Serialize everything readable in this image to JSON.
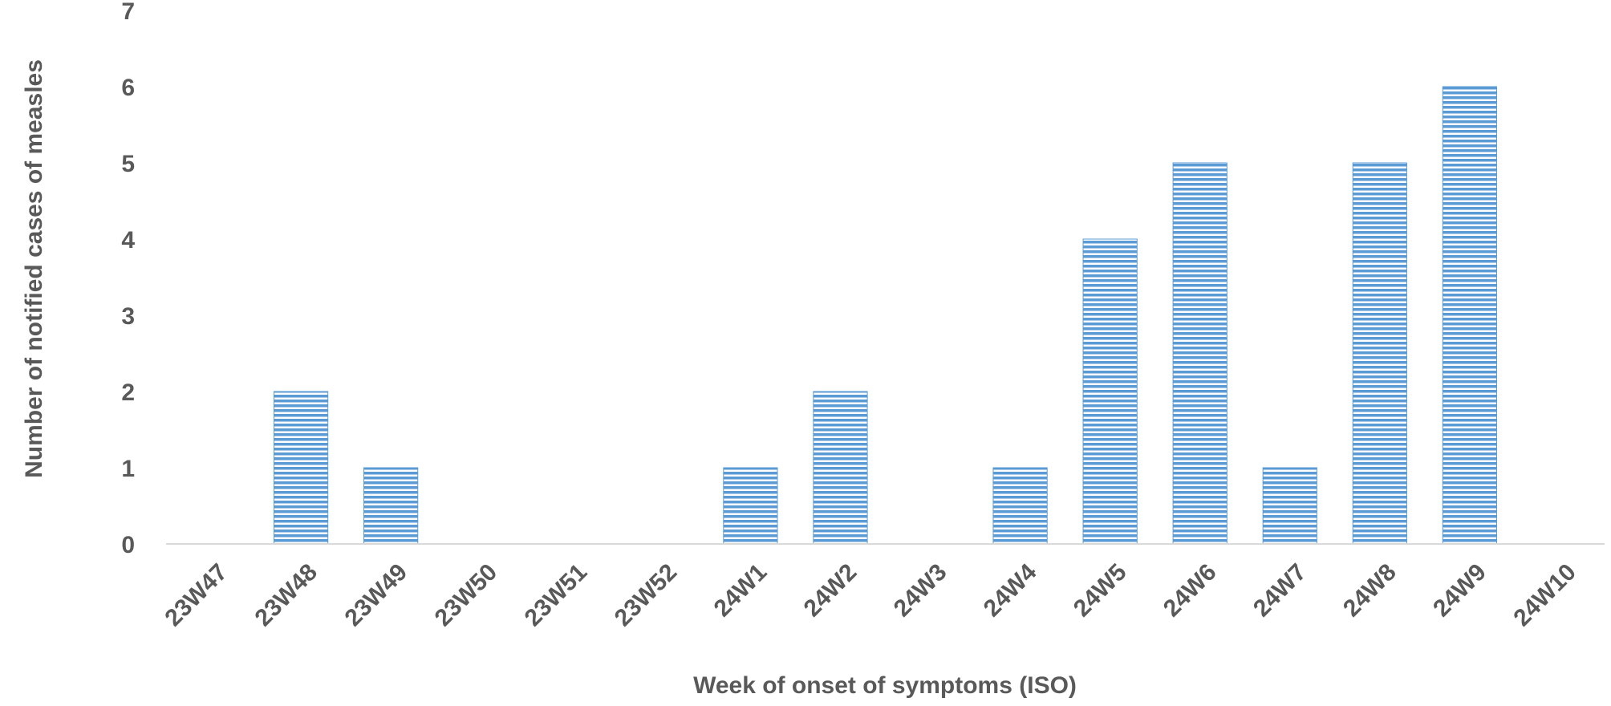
{
  "chart_data": {
    "type": "bar",
    "title": "",
    "xlabel": "Week of onset of symptoms (ISO)",
    "ylabel": "Number of notified cases of measles",
    "categories": [
      "23W47",
      "23W48",
      "23W49",
      "23W50",
      "23W51",
      "23W52",
      "24W1",
      "24W2",
      "24W3",
      "24W4",
      "24W5",
      "24W6",
      "24W7",
      "24W8",
      "24W9",
      "24W10"
    ],
    "values": [
      0,
      2,
      1,
      0,
      0,
      0,
      1,
      2,
      0,
      1,
      4,
      5,
      1,
      5,
      6,
      0
    ],
    "ylim": [
      0,
      7
    ],
    "yticks": [
      0,
      1,
      2,
      3,
      4,
      5,
      6,
      7
    ],
    "grid": false,
    "legend": "none",
    "bar_color": "#5b9bd5",
    "bar_pattern": "horizontal-lines"
  }
}
